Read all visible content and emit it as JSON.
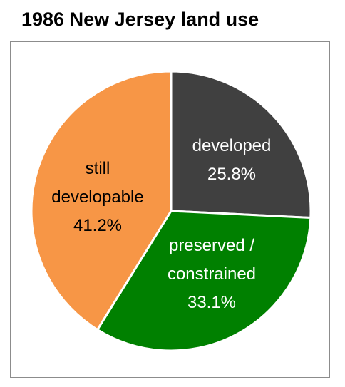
{
  "chart_data": {
    "type": "pie",
    "title": "1986 New Jersey land use",
    "categories": [
      "developed",
      "preserved / constrained",
      "still developable"
    ],
    "values": [
      25.8,
      33.1,
      41.2
    ],
    "value_labels": [
      "25.8%",
      "33.1%",
      "41.2%"
    ],
    "colors": [
      "#404040",
      "#008000",
      "#f79646"
    ]
  }
}
